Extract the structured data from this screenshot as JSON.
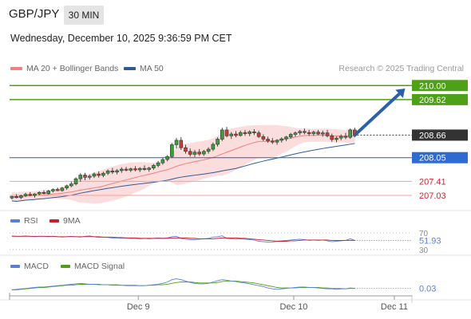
{
  "header": {
    "symbol": "GBP/JPY",
    "timeframe": "30 MIN",
    "datetime": "Wednesday, December 10, 2025 9:36:59 PM CET"
  },
  "legend": {
    "ma20_label": "MA 20 + Bollinger Bands",
    "ma50_label": "MA 50",
    "credit": "Research © 2025 Trading Central",
    "rsi_label": "RSI",
    "rsi_ma_label": "9MA",
    "macd_label": "MACD",
    "macd_signal_label": "MACD Signal"
  },
  "colors": {
    "ma20": "#f08080",
    "ma50": "#2e5a98",
    "bollinger_fill": "#fbd9d9",
    "target_line": "#4ea116",
    "support_line": "#2d5cc4",
    "pivot_line": "#f0a0a0",
    "arrow": "#2d5fa6",
    "price_label_bg": "#333333",
    "support_label_bg": "#2d6bd1",
    "target_label_bg": "#4ea116",
    "pivot_text": "#d9232d",
    "rsi": "#5b7fd9",
    "rsi_ma": "#c8202a",
    "macd": "#5b7fd9",
    "macd_signal": "#4ea116"
  },
  "chart_data": [
    {
      "type": "candlestick",
      "xlabel": "",
      "ylabel": "",
      "ylim": [
        206.75,
        210.2
      ],
      "x_ticks": [
        "Dec 9",
        "Dec 10",
        "Dec 11"
      ],
      "current_price": 208.66,
      "levels": [
        {
          "name": "target-2",
          "value": 210.0,
          "label": "210.00",
          "kind": "target"
        },
        {
          "name": "target-1",
          "value": 209.62,
          "label": "209.62",
          "kind": "target"
        },
        {
          "name": "current",
          "value": 208.66,
          "label": "208.66",
          "kind": "price"
        },
        {
          "name": "pivot",
          "value": 208.05,
          "label": "208.05",
          "kind": "support"
        },
        {
          "name": "support-1",
          "value": 207.41,
          "label": "207.41",
          "kind": "support-text"
        },
        {
          "name": "support-2",
          "value": 207.03,
          "label": "207.03",
          "kind": "support-text"
        }
      ],
      "arrow": {
        "from_index": 75,
        "from": 208.66,
        "to_index": 86,
        "to": 209.92
      },
      "series": [
        {
          "name": "MA 20 + Bollinger Bands",
          "indicator": "ma20"
        },
        {
          "name": "MA 50",
          "indicator": "ma50"
        }
      ],
      "candles": [
        [
          206.96,
          207.02,
          206.92,
          207.0
        ],
        [
          207.0,
          207.06,
          206.95,
          206.97
        ],
        [
          206.97,
          207.05,
          206.93,
          207.02
        ],
        [
          207.02,
          207.1,
          206.99,
          207.06
        ],
        [
          207.06,
          207.12,
          207.01,
          207.03
        ],
        [
          207.03,
          207.09,
          206.97,
          207.07
        ],
        [
          207.07,
          207.14,
          207.03,
          207.11
        ],
        [
          207.11,
          207.17,
          207.06,
          207.08
        ],
        [
          207.08,
          207.18,
          207.05,
          207.15
        ],
        [
          207.15,
          207.22,
          207.11,
          207.19
        ],
        [
          207.19,
          207.24,
          207.14,
          207.16
        ],
        [
          207.16,
          207.26,
          207.13,
          207.23
        ],
        [
          207.23,
          207.32,
          207.18,
          207.29
        ],
        [
          207.29,
          207.4,
          207.25,
          207.34
        ],
        [
          207.34,
          207.52,
          207.3,
          207.48
        ],
        [
          207.48,
          207.63,
          207.4,
          207.58
        ],
        [
          207.58,
          207.64,
          207.44,
          207.52
        ],
        [
          207.52,
          207.6,
          207.46,
          207.55
        ],
        [
          207.55,
          207.65,
          207.5,
          207.61
        ],
        [
          207.61,
          207.68,
          207.51,
          207.57
        ],
        [
          207.57,
          207.67,
          207.52,
          207.63
        ],
        [
          207.63,
          207.73,
          207.58,
          207.69
        ],
        [
          207.69,
          207.77,
          207.61,
          207.66
        ],
        [
          207.66,
          207.74,
          207.6,
          207.7
        ],
        [
          207.7,
          207.79,
          207.64,
          207.74
        ],
        [
          207.74,
          207.8,
          207.68,
          207.71
        ],
        [
          207.71,
          207.78,
          207.66,
          207.75
        ],
        [
          207.75,
          207.82,
          207.68,
          207.72
        ],
        [
          207.72,
          207.79,
          207.66,
          207.76
        ],
        [
          207.76,
          207.84,
          207.7,
          207.73
        ],
        [
          207.73,
          207.8,
          207.67,
          207.77
        ],
        [
          207.77,
          207.88,
          207.72,
          207.84
        ],
        [
          207.84,
          207.96,
          207.79,
          207.91
        ],
        [
          207.91,
          208.04,
          207.86,
          208.0
        ],
        [
          208.0,
          208.12,
          207.95,
          208.08
        ],
        [
          208.08,
          208.45,
          208.04,
          208.4
        ],
        [
          208.4,
          208.58,
          208.3,
          208.52
        ],
        [
          208.52,
          208.6,
          208.26,
          208.32
        ],
        [
          208.32,
          208.4,
          208.16,
          208.22
        ],
        [
          208.22,
          208.3,
          208.08,
          208.14
        ],
        [
          208.14,
          208.26,
          208.07,
          208.2
        ],
        [
          208.2,
          208.28,
          208.1,
          208.15
        ],
        [
          208.15,
          208.26,
          208.1,
          208.22
        ],
        [
          208.22,
          208.33,
          208.16,
          208.28
        ],
        [
          208.28,
          208.46,
          208.23,
          208.41
        ],
        [
          208.41,
          208.6,
          208.35,
          208.55
        ],
        [
          208.55,
          208.86,
          208.5,
          208.8
        ],
        [
          208.8,
          208.88,
          208.6,
          208.64
        ],
        [
          208.64,
          208.74,
          208.56,
          208.69
        ],
        [
          208.69,
          208.77,
          208.6,
          208.65
        ],
        [
          208.65,
          208.78,
          208.62,
          208.73
        ],
        [
          208.73,
          208.8,
          208.64,
          208.7
        ],
        [
          208.7,
          208.79,
          208.63,
          208.75
        ],
        [
          208.75,
          208.82,
          208.66,
          208.72
        ],
        [
          208.72,
          208.78,
          208.58,
          208.62
        ],
        [
          208.62,
          208.68,
          208.5,
          208.55
        ],
        [
          208.55,
          208.62,
          208.45,
          208.5
        ],
        [
          208.5,
          208.58,
          208.42,
          208.47
        ],
        [
          208.47,
          208.55,
          208.4,
          208.52
        ],
        [
          208.52,
          208.6,
          208.46,
          208.56
        ],
        [
          208.56,
          208.64,
          208.5,
          208.61
        ],
        [
          208.61,
          208.72,
          208.56,
          208.68
        ],
        [
          208.68,
          208.76,
          208.62,
          208.72
        ],
        [
          208.72,
          208.8,
          208.66,
          208.76
        ],
        [
          208.76,
          208.84,
          208.68,
          208.73
        ],
        [
          208.73,
          208.8,
          208.64,
          208.7
        ],
        [
          208.7,
          208.78,
          208.64,
          208.74
        ],
        [
          208.74,
          208.8,
          208.66,
          208.69
        ],
        [
          208.69,
          208.78,
          208.62,
          208.72
        ],
        [
          208.72,
          208.8,
          208.6,
          208.64
        ],
        [
          208.64,
          208.7,
          208.48,
          208.54
        ],
        [
          208.54,
          208.62,
          208.47,
          208.58
        ],
        [
          208.58,
          208.68,
          208.52,
          208.63
        ],
        [
          208.63,
          208.72,
          208.55,
          208.6
        ],
        [
          208.6,
          208.84,
          208.56,
          208.8
        ],
        [
          208.8,
          208.86,
          208.6,
          208.66
        ]
      ]
    },
    {
      "type": "line",
      "name": "RSI",
      "ylim": [
        20,
        80
      ],
      "y_ticks": [
        70,
        30
      ],
      "current": 51.93,
      "current_label": "51.93",
      "series": [
        {
          "name": "RSI",
          "values": [
            63,
            62,
            62,
            63,
            62,
            61,
            62,
            62,
            61,
            62,
            61,
            60,
            61,
            62,
            61,
            60,
            62,
            63,
            61,
            59,
            60,
            59,
            58,
            58,
            57,
            58,
            57,
            57,
            56,
            57,
            56,
            57,
            58,
            57,
            58,
            61,
            62,
            57,
            55,
            54,
            54,
            55,
            56,
            57,
            60,
            61,
            63,
            57,
            56,
            55,
            56,
            55,
            54,
            53,
            50,
            49,
            48,
            48,
            50,
            51,
            52,
            53,
            54,
            55,
            54,
            52,
            53,
            52,
            53,
            51,
            49,
            50,
            51,
            52,
            56,
            52
          ]
        },
        {
          "name": "9MA",
          "values": [
            62,
            62,
            62,
            62,
            62,
            62,
            62,
            62,
            62,
            62,
            61,
            61,
            61,
            61,
            61,
            61,
            61,
            61,
            61,
            61,
            60,
            60,
            60,
            59,
            59,
            58,
            58,
            58,
            57,
            57,
            57,
            57,
            57,
            57,
            57,
            58,
            58,
            58,
            58,
            57,
            57,
            56,
            56,
            56,
            56,
            57,
            58,
            58,
            58,
            58,
            57,
            57,
            56,
            55,
            54,
            53,
            52,
            51,
            50,
            50,
            50,
            51,
            51,
            52,
            53,
            53,
            53,
            53,
            53,
            53,
            52,
            52,
            52,
            52,
            52,
            52
          ]
        }
      ]
    },
    {
      "type": "line",
      "name": "MACD",
      "ylim": [
        -0.15,
        0.32
      ],
      "current": 0.03,
      "current_label": "0.03",
      "series": [
        {
          "name": "MACD",
          "values": [
            0.0,
            0.01,
            0.02,
            0.03,
            0.04,
            0.05,
            0.06,
            0.06,
            0.07,
            0.08,
            0.09,
            0.1,
            0.11,
            0.12,
            0.13,
            0.14,
            0.13,
            0.12,
            0.12,
            0.11,
            0.11,
            0.11,
            0.1,
            0.1,
            0.1,
            0.09,
            0.09,
            0.09,
            0.09,
            0.09,
            0.1,
            0.11,
            0.12,
            0.14,
            0.17,
            0.22,
            0.24,
            0.22,
            0.19,
            0.16,
            0.14,
            0.13,
            0.13,
            0.14,
            0.17,
            0.2,
            0.22,
            0.21,
            0.19,
            0.18,
            0.16,
            0.15,
            0.13,
            0.11,
            0.09,
            0.07,
            0.04,
            0.02,
            0.01,
            0.02,
            0.03,
            0.04,
            0.05,
            0.06,
            0.06,
            0.05,
            0.05,
            0.04,
            0.03,
            0.02,
            0.02,
            0.01,
            0.02,
            0.02,
            0.04,
            0.03
          ]
        },
        {
          "name": "MACD Signal",
          "values": [
            0.0,
            0.0,
            0.01,
            0.02,
            0.03,
            0.04,
            0.05,
            0.05,
            0.06,
            0.07,
            0.08,
            0.09,
            0.1,
            0.1,
            0.11,
            0.12,
            0.12,
            0.12,
            0.12,
            0.12,
            0.11,
            0.11,
            0.11,
            0.11,
            0.1,
            0.1,
            0.1,
            0.1,
            0.09,
            0.09,
            0.1,
            0.1,
            0.11,
            0.11,
            0.12,
            0.14,
            0.16,
            0.17,
            0.17,
            0.17,
            0.16,
            0.15,
            0.15,
            0.15,
            0.15,
            0.16,
            0.18,
            0.19,
            0.19,
            0.19,
            0.18,
            0.17,
            0.16,
            0.15,
            0.13,
            0.11,
            0.09,
            0.07,
            0.05,
            0.04,
            0.04,
            0.04,
            0.04,
            0.05,
            0.05,
            0.05,
            0.05,
            0.05,
            0.04,
            0.04,
            0.03,
            0.03,
            0.03,
            0.02,
            0.03,
            0.03
          ]
        }
      ]
    }
  ]
}
